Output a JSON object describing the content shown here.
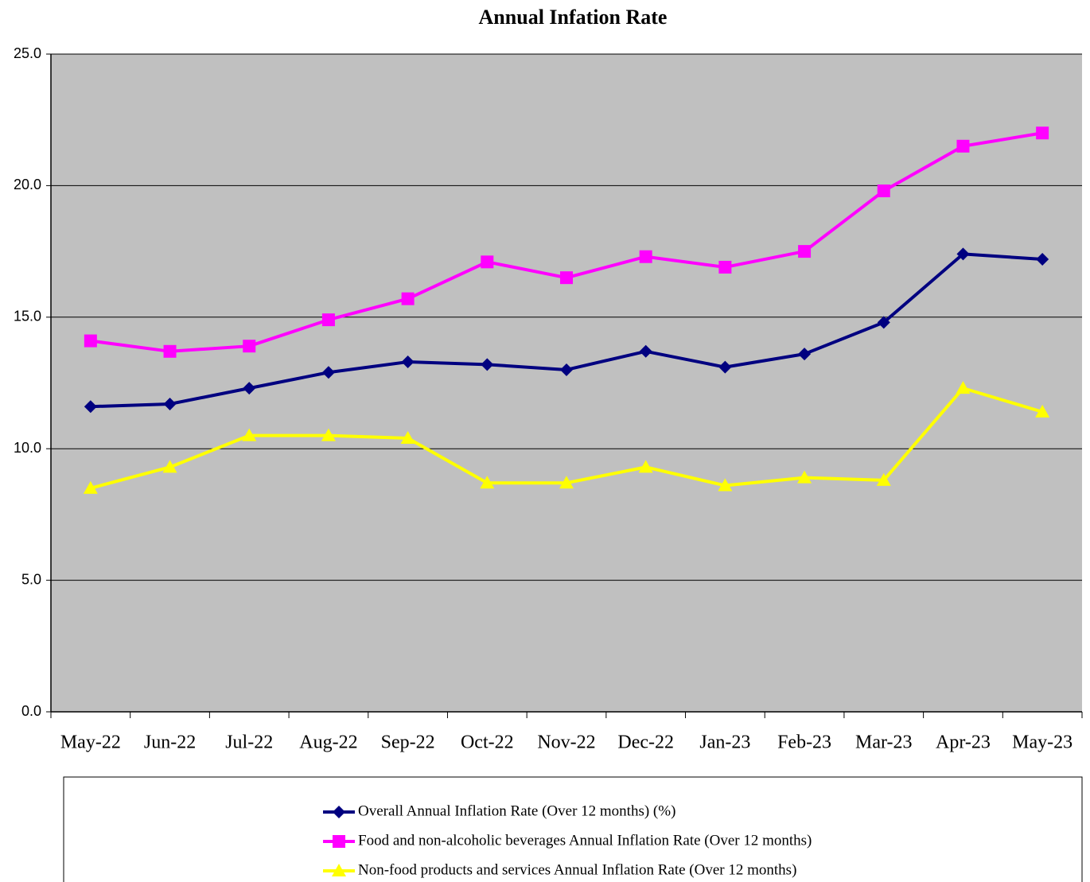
{
  "chart_data": {
    "type": "line",
    "title": "Annual Infation Rate",
    "categories": [
      "May-22",
      "Jun-22",
      "Jul-22",
      "Aug-22",
      "Sep-22",
      "Oct-22",
      "Nov-22",
      "Dec-22",
      "Jan-23",
      "Feb-23",
      "Mar-23",
      "Apr-23",
      "May-23"
    ],
    "series": [
      {
        "name": "Overall Annual Inflation Rate (Over 12 months) (%)",
        "color": "#000080",
        "marker": "diamond",
        "values": [
          11.6,
          11.7,
          12.3,
          12.9,
          13.3,
          13.2,
          13.0,
          13.7,
          13.1,
          13.6,
          14.8,
          17.4,
          17.2
        ]
      },
      {
        "name": "Food and non-alcoholic beverages Annual Inflation Rate (Over 12 months)",
        "color": "#ff00ff",
        "marker": "square",
        "values": [
          14.1,
          13.7,
          13.9,
          14.9,
          15.7,
          17.1,
          16.5,
          17.3,
          16.9,
          17.5,
          19.8,
          21.5,
          22.0
        ]
      },
      {
        "name": "Non-food products and services  Annual Inflation Rate (Over 12 months)",
        "color": "#ffff00",
        "marker": "triangle",
        "values": [
          8.5,
          9.3,
          10.5,
          10.5,
          10.4,
          8.7,
          8.7,
          9.3,
          8.6,
          8.9,
          8.8,
          12.3,
          11.4
        ]
      }
    ],
    "ylim": [
      0,
      25
    ],
    "yticks": [
      {
        "value": 0,
        "label": "0.0"
      },
      {
        "value": 5,
        "label": "5.0"
      },
      {
        "value": 10,
        "label": "10.0"
      },
      {
        "value": 15,
        "label": "15.0"
      },
      {
        "value": 20,
        "label": "20.0"
      },
      {
        "value": 25,
        "label": "25.0"
      }
    ],
    "grid": true,
    "legend": "bottom",
    "plot_background": "#c0c0c0"
  }
}
